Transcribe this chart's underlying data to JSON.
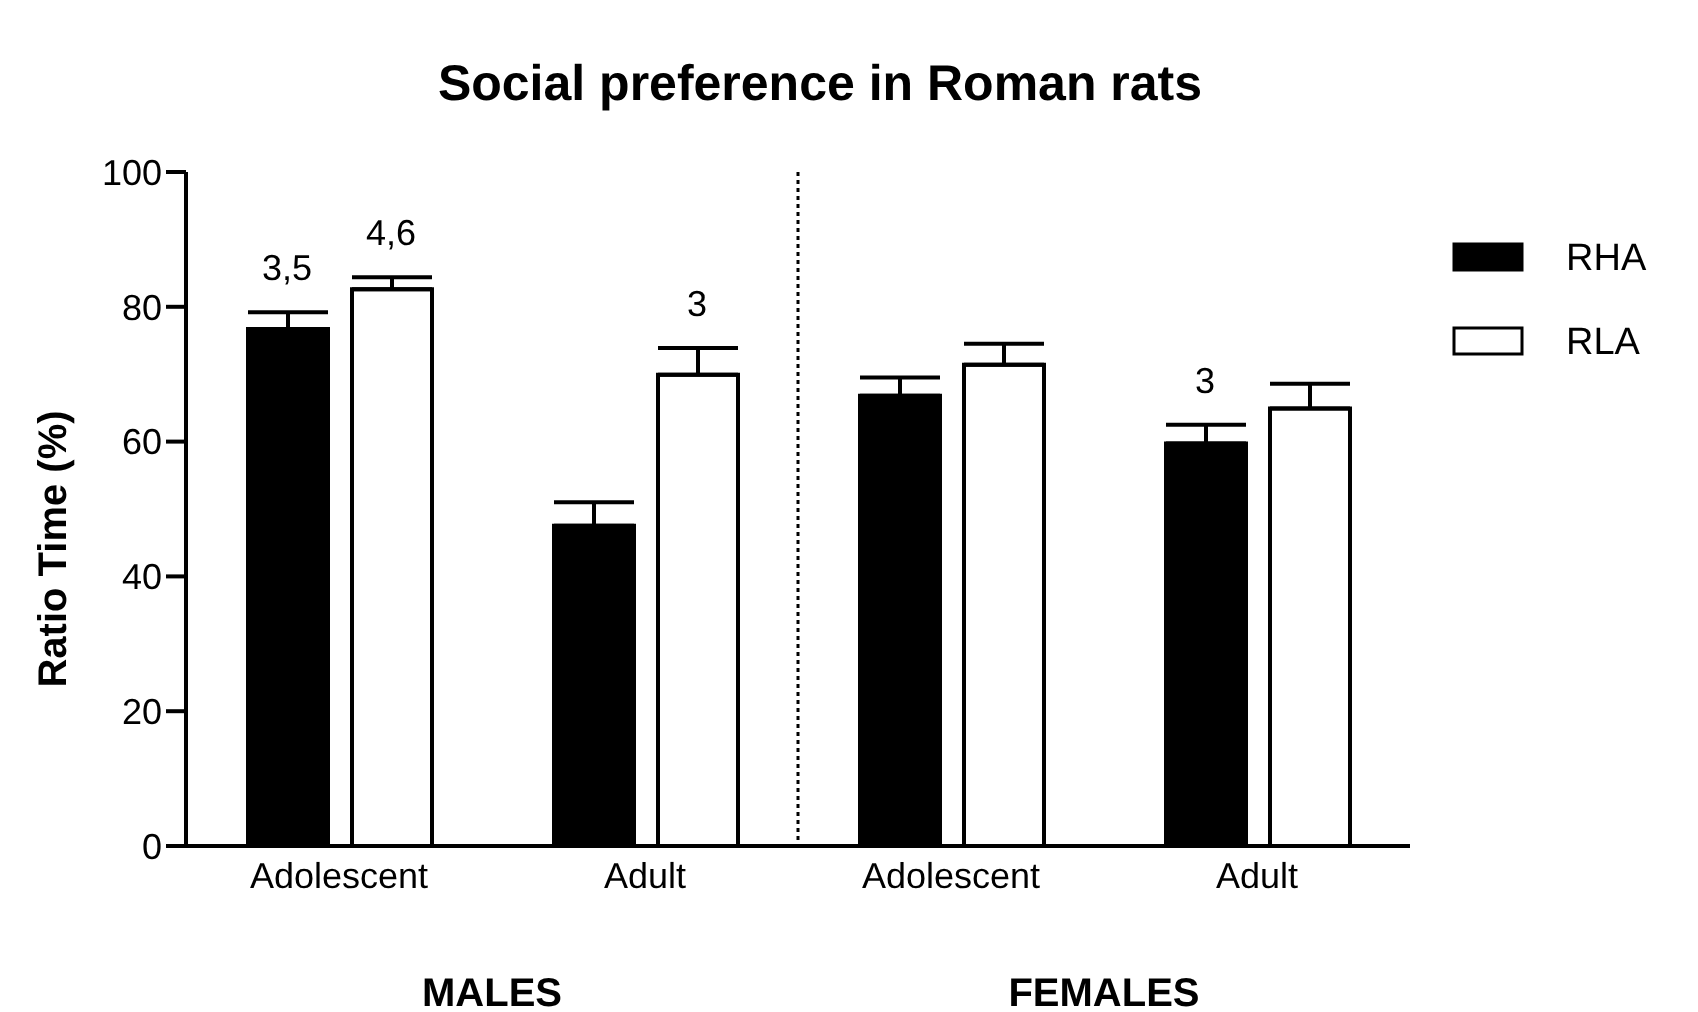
{
  "chart_data": {
    "type": "bar",
    "title": "Social preference in Roman rats",
    "ylabel": "Ratio Time (%)",
    "categories": [
      "Adolescent",
      "Adult",
      "Adolescent",
      "Adult"
    ],
    "series": [
      {
        "name": "RHA",
        "color": "#000000",
        "values": [
          76.7,
          47.5,
          66.8,
          59.7
        ],
        "errors": [
          2.5,
          3.5,
          2.7,
          2.8
        ]
      },
      {
        "name": "RLA",
        "color": "#ffffff",
        "values": [
          82.6,
          69.9,
          71.4,
          64.9
        ],
        "errors": [
          1.8,
          4,
          3.1,
          3.7
        ]
      }
    ],
    "annotations": [
      "MALES",
      "FEMALES",
      "3,5",
      "4,6",
      "3",
      "3"
    ],
    "ylim": [
      0,
      100
    ],
    "yticks": [
      0,
      20,
      40,
      60,
      80,
      100
    ],
    "legend": "top right"
  }
}
